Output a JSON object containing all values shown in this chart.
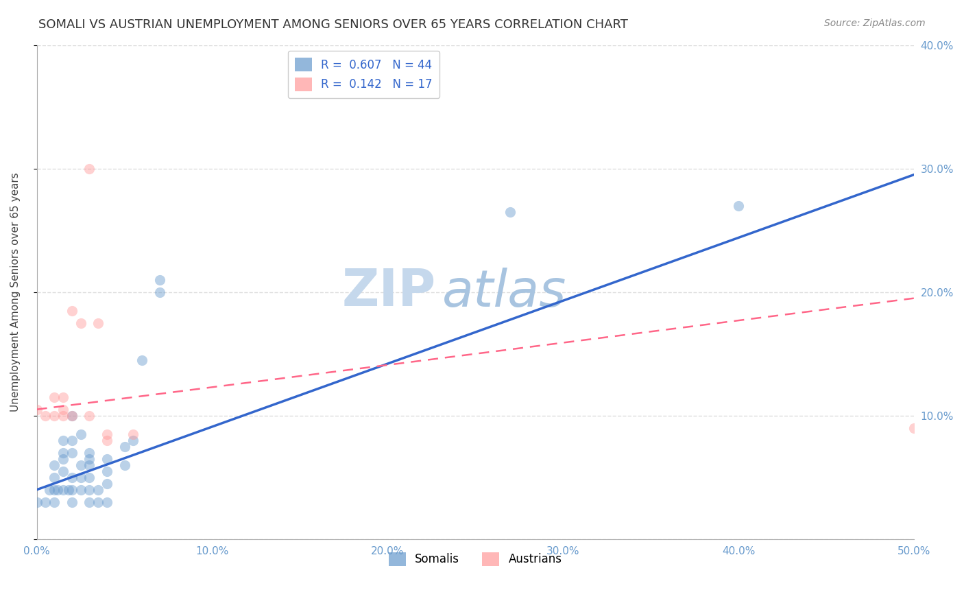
{
  "title": "SOMALI VS AUSTRIAN UNEMPLOYMENT AMONG SENIORS OVER 65 YEARS CORRELATION CHART",
  "source": "Source: ZipAtlas.com",
  "xlabel": "",
  "ylabel": "Unemployment Among Seniors over 65 years",
  "xlim": [
    0.0,
    0.5
  ],
  "ylim": [
    0.0,
    0.4
  ],
  "xticks": [
    0.0,
    0.1,
    0.2,
    0.3,
    0.4,
    0.5
  ],
  "yticks": [
    0.0,
    0.1,
    0.2,
    0.3,
    0.4
  ],
  "xtick_labels": [
    "0.0%",
    "10.0%",
    "20.0%",
    "30.0%",
    "40.0%",
    "50.0%"
  ],
  "ytick_labels": [
    "",
    "",
    "",
    "",
    ""
  ],
  "right_ytick_labels": [
    "10.0%",
    "20.0%",
    "30.0%",
    "40.0%"
  ],
  "right_yticks": [
    0.1,
    0.2,
    0.3,
    0.4
  ],
  "somali_R": "0.607",
  "somali_N": "44",
  "austrian_R": "0.142",
  "austrian_N": "17",
  "somali_color": "#6699CC",
  "austrian_color": "#FF9999",
  "trendline_somali_color": "#3366CC",
  "trendline_austrian_color": "#FF6688",
  "watermark_zip_color": "#C5D8EC",
  "watermark_atlas_color": "#A8C4E0",
  "background_color": "#FFFFFF",
  "grid_color": "#DDDDDD",
  "axis_label_color": "#6699CC",
  "somali_x": [
    0.0,
    0.005,
    0.007,
    0.01,
    0.01,
    0.01,
    0.01,
    0.012,
    0.015,
    0.015,
    0.015,
    0.015,
    0.015,
    0.018,
    0.02,
    0.02,
    0.02,
    0.02,
    0.02,
    0.02,
    0.025,
    0.025,
    0.025,
    0.025,
    0.03,
    0.03,
    0.03,
    0.03,
    0.03,
    0.03,
    0.035,
    0.035,
    0.04,
    0.04,
    0.04,
    0.04,
    0.05,
    0.05,
    0.055,
    0.06,
    0.07,
    0.07,
    0.27,
    0.4
  ],
  "somali_y": [
    0.03,
    0.03,
    0.04,
    0.03,
    0.04,
    0.05,
    0.06,
    0.04,
    0.04,
    0.055,
    0.065,
    0.07,
    0.08,
    0.04,
    0.03,
    0.04,
    0.05,
    0.07,
    0.08,
    0.1,
    0.04,
    0.05,
    0.06,
    0.085,
    0.03,
    0.04,
    0.05,
    0.06,
    0.065,
    0.07,
    0.03,
    0.04,
    0.03,
    0.045,
    0.055,
    0.065,
    0.06,
    0.075,
    0.08,
    0.145,
    0.2,
    0.21,
    0.265,
    0.27
  ],
  "austrian_x": [
    0.0,
    0.005,
    0.01,
    0.01,
    0.015,
    0.015,
    0.015,
    0.02,
    0.02,
    0.025,
    0.03,
    0.03,
    0.035,
    0.04,
    0.04,
    0.055,
    0.5
  ],
  "austrian_y": [
    0.105,
    0.1,
    0.1,
    0.115,
    0.1,
    0.105,
    0.115,
    0.1,
    0.185,
    0.175,
    0.1,
    0.3,
    0.175,
    0.08,
    0.085,
    0.085,
    0.09
  ],
  "somali_trend_x": [
    0.0,
    0.5
  ],
  "somali_trend_y": [
    0.04,
    0.295
  ],
  "austrian_trend_x": [
    0.0,
    0.5
  ],
  "austrian_trend_y": [
    0.105,
    0.195
  ],
  "marker_size": 120,
  "marker_alpha": 0.45,
  "title_fontsize": 13,
  "label_fontsize": 11,
  "tick_fontsize": 11,
  "legend_fontsize": 12
}
